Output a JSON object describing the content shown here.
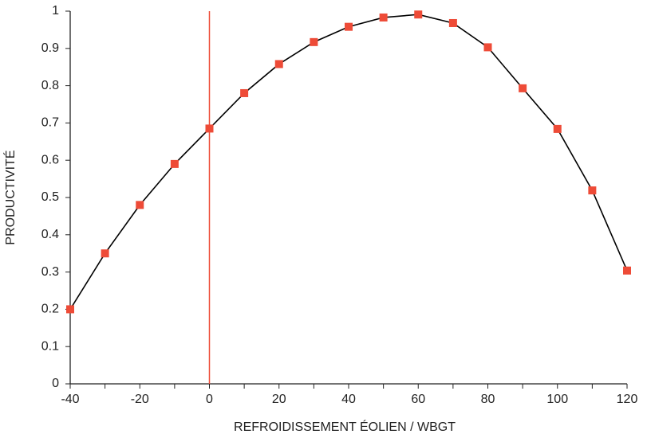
{
  "chart_data": {
    "type": "line",
    "x": [
      -40,
      -30,
      -20,
      -10,
      0,
      10,
      20,
      30,
      40,
      50,
      60,
      70,
      80,
      90,
      100,
      110,
      120
    ],
    "series": [
      {
        "name": "Productivité",
        "color": "#000000",
        "marker_color": "#ee4b37",
        "values": [
          0.2,
          0.35,
          0.48,
          0.59,
          0.685,
          0.78,
          0.858,
          0.917,
          0.958,
          0.983,
          0.991,
          0.968,
          0.903,
          0.793,
          0.684,
          0.519,
          0.304
        ]
      }
    ],
    "xlabel": "REFROIDISSEMENT ÉOLIEN / WBGT",
    "ylabel": "PRODUCTIVITÉ",
    "xlim": [
      -40,
      120
    ],
    "xticks": [
      -40,
      -20,
      0,
      20,
      40,
      60,
      80,
      100,
      120
    ],
    "xminor_ticks": [
      -30,
      -10,
      10,
      30,
      50,
      70,
      90,
      110
    ],
    "ylim": [
      0,
      1
    ],
    "yticks": [
      0,
      0.1,
      0.2,
      0.3,
      0.4,
      0.5,
      0.6,
      0.7,
      0.8,
      0.9,
      1
    ],
    "vline": 0,
    "vline_color": "#ee4b37",
    "grid": false
  }
}
